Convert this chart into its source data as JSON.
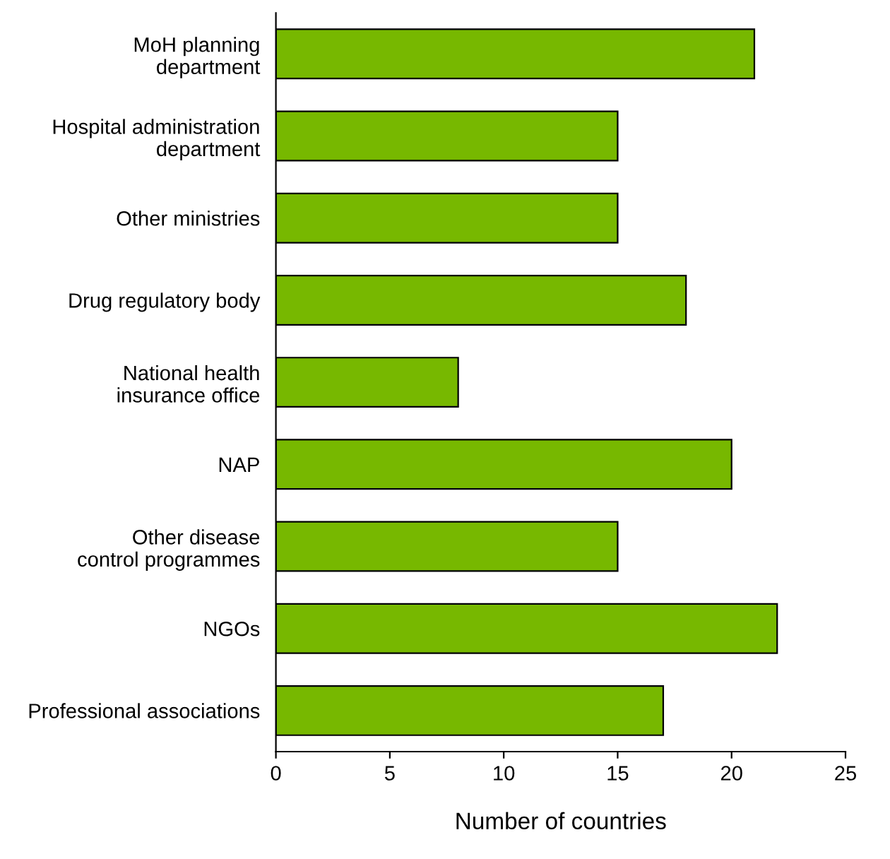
{
  "chart_data": {
    "type": "bar",
    "orientation": "horizontal",
    "xlabel": "Number of countries",
    "categories": [
      "MoH planning\ndepartment",
      "Hospital administration\ndepartment",
      "Other ministries",
      "Drug regulatory body",
      "National health\ninsurance office",
      "NAP",
      "Other disease\ncontrol programmes",
      "NGOs",
      "Professional associations"
    ],
    "values": [
      21,
      15,
      15,
      18,
      8,
      20,
      15,
      22,
      17
    ],
    "color": "#77b800",
    "xlim": [
      0,
      25
    ],
    "xticks": [
      0,
      5,
      10,
      15,
      20,
      25
    ],
    "grid": false
  }
}
